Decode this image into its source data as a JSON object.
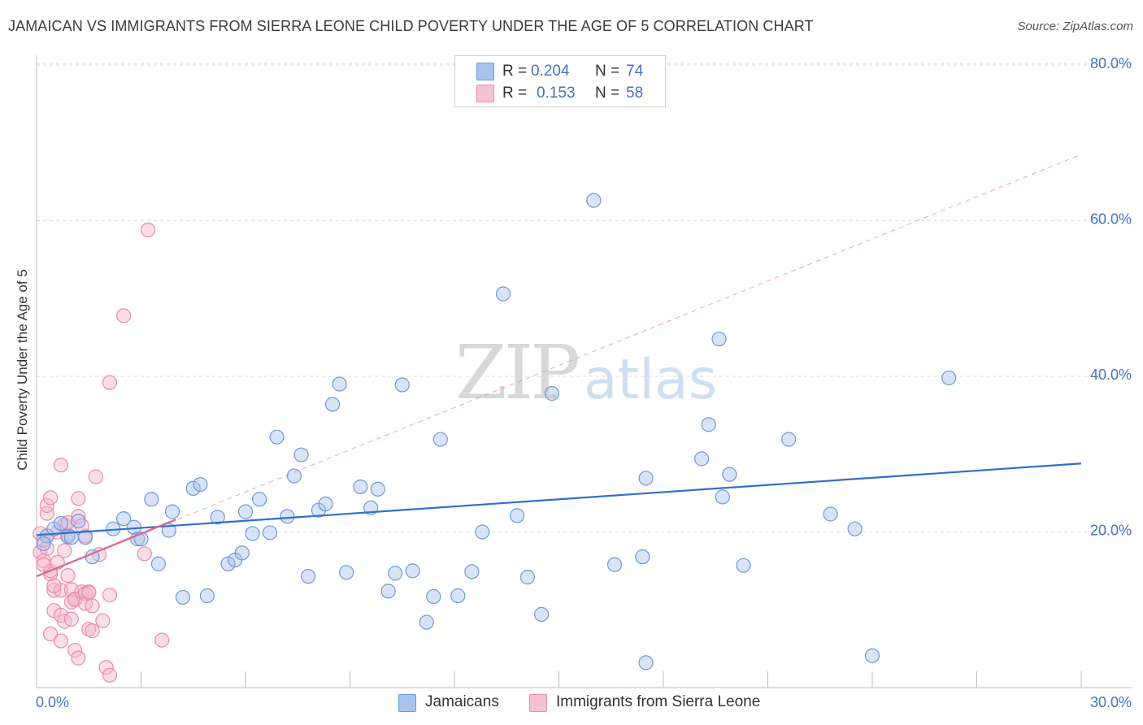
{
  "title": "JAMAICAN VS IMMIGRANTS FROM SIERRA LEONE CHILD POVERTY UNDER THE AGE OF 5 CORRELATION CHART",
  "source": "Source: ZipAtlas.com",
  "watermark": {
    "zip": "ZIP",
    "atlas": "atlas"
  },
  "legend": [
    {
      "r_label": "R =",
      "r_value": "0.204",
      "n_label": "N =",
      "n_value": "74"
    },
    {
      "r_label": "R =",
      "r_value": "0.153",
      "n_label": "N =",
      "n_value": "58"
    }
  ],
  "bottom_legend": {
    "series1": "Jamaicans",
    "series2": "Immigrants from Sierra Leone"
  },
  "colors": {
    "blue_fill": "#a8c4ec",
    "blue_stroke": "#6f98d8",
    "blue_line": "#2f6fcf",
    "pink_fill": "#f5b6ca",
    "pink_stroke": "#ea8aab",
    "pink_line": "#e0648f",
    "tick_text": "#4472c4",
    "grid": "#dcdcdc"
  },
  "chart_data": {
    "type": "scatter",
    "title": "JAMAICAN VS IMMIGRANTS FROM SIERRA LEONE CHILD POVERTY UNDER THE AGE OF 5 CORRELATION CHART",
    "xlabel": "",
    "ylabel": "Child Poverty Under the Age of 5",
    "xlim": [
      0,
      30
    ],
    "ylim": [
      0,
      80
    ],
    "x_tick_labels": [
      {
        "value": 0,
        "label": "0.0%"
      },
      {
        "value": 30,
        "label": "30.0%"
      }
    ],
    "y_tick_labels": [
      {
        "value": 20,
        "label": "20.0%"
      },
      {
        "value": 40,
        "label": "40.0%"
      },
      {
        "value": 60,
        "label": "60.0%"
      },
      {
        "value": 80,
        "label": "80.0%"
      }
    ],
    "series": [
      {
        "name": "Jamaicans",
        "r": 0.204,
        "n": 74,
        "trend": {
          "x": [
            0,
            30
          ],
          "y": [
            19.6,
            28.8
          ]
        },
        "points": [
          [
            0.3,
            19.5
          ],
          [
            0.5,
            20.4
          ],
          [
            0.7,
            21.1
          ],
          [
            0.9,
            19.4
          ],
          [
            1.0,
            19.3
          ],
          [
            1.2,
            21.4
          ],
          [
            1.4,
            19.3
          ],
          [
            1.6,
            16.8
          ],
          [
            2.2,
            20.4
          ],
          [
            2.5,
            21.7
          ],
          [
            2.8,
            20.6
          ],
          [
            2.9,
            19.1
          ],
          [
            3.0,
            19.1
          ],
          [
            3.3,
            24.2
          ],
          [
            3.5,
            15.9
          ],
          [
            3.8,
            20.2
          ],
          [
            3.9,
            22.6
          ],
          [
            4.2,
            11.6
          ],
          [
            4.5,
            25.6
          ],
          [
            4.7,
            26.1
          ],
          [
            4.9,
            11.8
          ],
          [
            5.2,
            21.9
          ],
          [
            5.5,
            15.9
          ],
          [
            5.7,
            16.4
          ],
          [
            5.9,
            17.3
          ],
          [
            6.0,
            22.6
          ],
          [
            6.2,
            19.8
          ],
          [
            6.4,
            24.2
          ],
          [
            6.7,
            19.9
          ],
          [
            6.9,
            32.2
          ],
          [
            7.2,
            22.0
          ],
          [
            7.4,
            27.2
          ],
          [
            7.6,
            29.9
          ],
          [
            7.8,
            14.3
          ],
          [
            8.1,
            22.8
          ],
          [
            8.3,
            23.6
          ],
          [
            8.5,
            36.4
          ],
          [
            8.7,
            39.0
          ],
          [
            8.9,
            14.8
          ],
          [
            9.3,
            25.8
          ],
          [
            9.6,
            23.1
          ],
          [
            9.8,
            25.5
          ],
          [
            10.1,
            12.4
          ],
          [
            10.3,
            14.7
          ],
          [
            10.5,
            38.9
          ],
          [
            10.8,
            15.0
          ],
          [
            11.2,
            8.4
          ],
          [
            11.4,
            11.7
          ],
          [
            11.6,
            31.9
          ],
          [
            12.1,
            11.8
          ],
          [
            12.5,
            14.9
          ],
          [
            12.8,
            20.0
          ],
          [
            13.4,
            50.6
          ],
          [
            13.8,
            22.1
          ],
          [
            14.1,
            14.2
          ],
          [
            14.5,
            9.4
          ],
          [
            14.8,
            37.8
          ],
          [
            16.0,
            62.6
          ],
          [
            16.6,
            15.8
          ],
          [
            17.4,
            16.8
          ],
          [
            17.5,
            26.9
          ],
          [
            17.5,
            3.2
          ],
          [
            19.1,
            29.4
          ],
          [
            19.3,
            33.8
          ],
          [
            19.6,
            44.8
          ],
          [
            19.7,
            24.5
          ],
          [
            19.9,
            27.4
          ],
          [
            20.3,
            15.7
          ],
          [
            21.6,
            31.9
          ],
          [
            22.8,
            22.3
          ],
          [
            23.5,
            20.4
          ],
          [
            24.0,
            4.1
          ],
          [
            26.2,
            39.8
          ],
          [
            0.2,
            18.5
          ]
        ]
      },
      {
        "name": "Immigrants from Sierra Leone",
        "r": 0.153,
        "n": 58,
        "trend": {
          "x": [
            0,
            4.0
          ],
          "y": [
            14.3,
            21.6
          ]
        },
        "points": [
          [
            0.1,
            17.4
          ],
          [
            0.1,
            19.8
          ],
          [
            0.2,
            16.3
          ],
          [
            0.2,
            18.9
          ],
          [
            0.3,
            22.4
          ],
          [
            0.3,
            23.4
          ],
          [
            0.3,
            19.5
          ],
          [
            0.4,
            14.6
          ],
          [
            0.4,
            15.0
          ],
          [
            0.4,
            24.4
          ],
          [
            0.4,
            6.9
          ],
          [
            0.5,
            9.9
          ],
          [
            0.5,
            12.5
          ],
          [
            0.6,
            16.1
          ],
          [
            0.6,
            20.0
          ],
          [
            0.7,
            12.5
          ],
          [
            0.7,
            6.0
          ],
          [
            0.7,
            9.3
          ],
          [
            0.7,
            28.6
          ],
          [
            0.8,
            8.5
          ],
          [
            0.8,
            20.9
          ],
          [
            0.8,
            17.6
          ],
          [
            0.9,
            14.4
          ],
          [
            0.9,
            19.6
          ],
          [
            0.9,
            21.2
          ],
          [
            1.0,
            12.6
          ],
          [
            1.0,
            8.8
          ],
          [
            1.0,
            11.0
          ],
          [
            1.1,
            4.8
          ],
          [
            1.1,
            11.4
          ],
          [
            1.1,
            11.3
          ],
          [
            1.2,
            22.0
          ],
          [
            1.2,
            3.8
          ],
          [
            1.2,
            24.3
          ],
          [
            1.3,
            12.3
          ],
          [
            1.4,
            12.1
          ],
          [
            1.4,
            10.8
          ],
          [
            1.4,
            19.5
          ],
          [
            1.5,
            12.3
          ],
          [
            1.5,
            7.5
          ],
          [
            1.5,
            12.2
          ],
          [
            1.6,
            7.3
          ],
          [
            1.6,
            10.5
          ],
          [
            1.7,
            27.1
          ],
          [
            1.8,
            17.1
          ],
          [
            1.9,
            8.6
          ],
          [
            2.0,
            2.6
          ],
          [
            2.1,
            11.9
          ],
          [
            2.1,
            39.2
          ],
          [
            2.1,
            1.6
          ],
          [
            2.5,
            47.8
          ],
          [
            3.1,
            17.2
          ],
          [
            3.2,
            58.8
          ],
          [
            3.6,
            6.1
          ],
          [
            0.2,
            15.8
          ],
          [
            0.5,
            13.1
          ],
          [
            1.3,
            20.8
          ],
          [
            0.3,
            17.9
          ]
        ]
      }
    ],
    "diagonal_reference": {
      "style": "dashed",
      "x": [
        0,
        30
      ],
      "y": [
        14.3,
        68.5
      ]
    }
  }
}
